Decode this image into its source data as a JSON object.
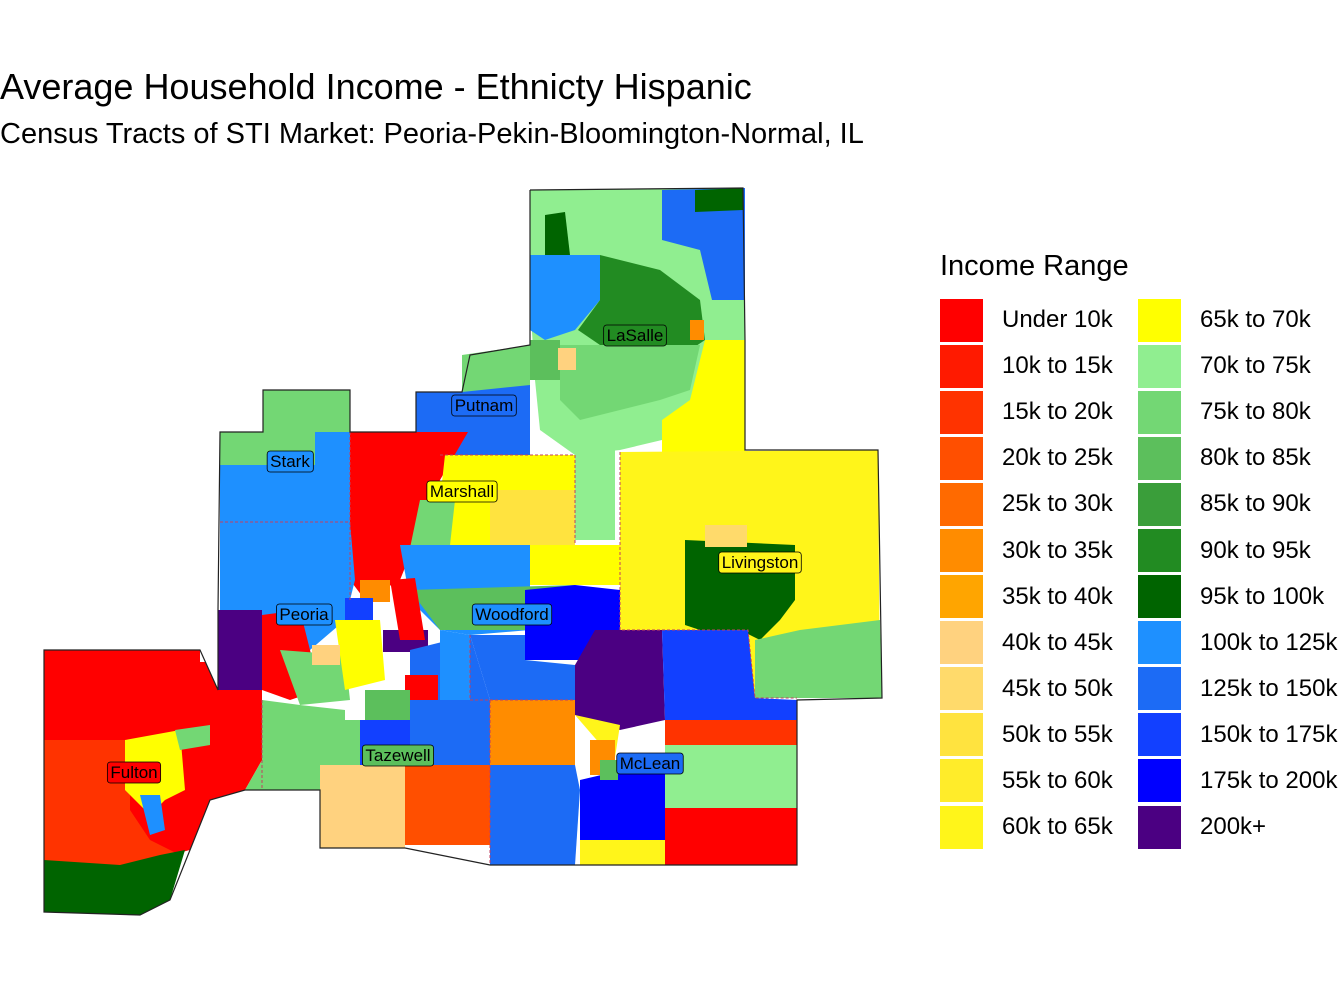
{
  "title": "Average Household Income - Ethnicty Hispanic",
  "subtitle": "Census Tracts of STI Market: Peoria-Pekin-Bloomington-Normal, IL",
  "legend": {
    "title": "Income Range",
    "items": [
      {
        "label": "Under 10k",
        "color": "#FF0000"
      },
      {
        "label": "10k to 15k",
        "color": "#FF1A00"
      },
      {
        "label": "15k to 20k",
        "color": "#FF3300"
      },
      {
        "label": "20k to 25k",
        "color": "#FF4F00"
      },
      {
        "label": "25k to 30k",
        "color": "#FF6A00"
      },
      {
        "label": "30k to 35k",
        "color": "#FF8C00"
      },
      {
        "label": "35k to 40k",
        "color": "#FFA500"
      },
      {
        "label": "40k to 45k",
        "color": "#FFD27F"
      },
      {
        "label": "45k to 50k",
        "color": "#FFDA6B"
      },
      {
        "label": "50k to 55k",
        "color": "#FFE33F"
      },
      {
        "label": "55k to 60k",
        "color": "#FFEC2A"
      },
      {
        "label": "60k to 65k",
        "color": "#FFF51A"
      },
      {
        "label": "65k to 70k",
        "color": "#FFFF00"
      },
      {
        "label": "70k to 75k",
        "color": "#90EE90"
      },
      {
        "label": "75k to 80k",
        "color": "#73D774"
      },
      {
        "label": "80k to 85k",
        "color": "#5CBF5C"
      },
      {
        "label": "85k to 90k",
        "color": "#3A9E3A"
      },
      {
        "label": "90k to 95k",
        "color": "#228B22"
      },
      {
        "label": "95k to 100k",
        "color": "#006400"
      },
      {
        "label": "100k to 125k",
        "color": "#1E90FF"
      },
      {
        "label": "125k to 150k",
        "color": "#1C6BF5"
      },
      {
        "label": "150k to 175k",
        "color": "#1240FF"
      },
      {
        "label": "175k to 200k",
        "color": "#0000FF"
      },
      {
        "label": "200k+",
        "color": "#4B0082"
      }
    ]
  },
  "counties": [
    {
      "name": "LaSalle",
      "color": "#228B22"
    },
    {
      "name": "Putnam",
      "color": "#1C6BF5"
    },
    {
      "name": "Stark",
      "color": "#1E90FF"
    },
    {
      "name": "Marshall",
      "color": "#FFFF00"
    },
    {
      "name": "Livingston",
      "color": "#FFF51A"
    },
    {
      "name": "Peoria",
      "color": "#1E90FF"
    },
    {
      "name": "Woodford",
      "color": "#1E90FF"
    },
    {
      "name": "Fulton",
      "color": "#FF0000"
    },
    {
      "name": "Tazewell",
      "color": "#5CBF5C"
    },
    {
      "name": "McLean",
      "color": "#1C6BF5"
    }
  ]
}
